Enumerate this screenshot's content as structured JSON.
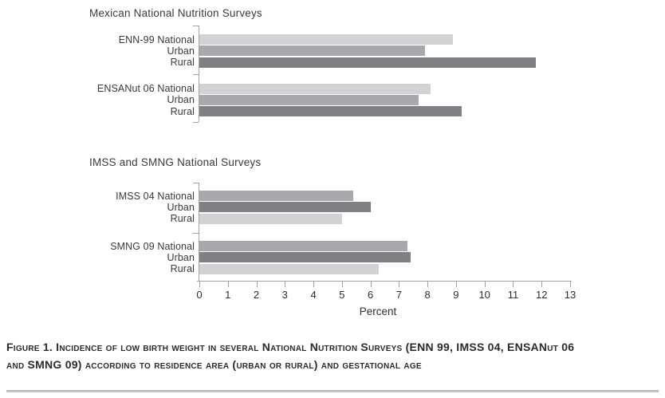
{
  "figure": {
    "caption_line1": "Figure 1. Incidence of low birth weight in several National Nutrition Surveys (ENN 99, IMSS 04, ENSANut 06",
    "caption_line2": "and SMNG 09) according to residence area (urban or rural) and gestational age"
  },
  "colors": {
    "light": "#d2d2d4",
    "medium": "#a8a8ac",
    "dark": "#7f7f84",
    "axis": "#a2a2a4",
    "text": "#39393b"
  },
  "axis": {
    "min": 0,
    "max": 13,
    "label": "Percent",
    "ticks": [
      "0",
      "1",
      "2",
      "3",
      "4",
      "5",
      "6",
      "7",
      "8",
      "9",
      "10",
      "11",
      "12",
      "13"
    ]
  },
  "chart_data": [
    {
      "type": "bar",
      "orientation": "horizontal",
      "title": "Mexican National Nutrition Surveys",
      "xlabel": "Percent",
      "xlim": [
        0,
        13
      ],
      "grid": false,
      "groups": [
        {
          "name": "ENN-99",
          "rows": [
            {
              "label": "ENN-99 National",
              "value": 8.9,
              "series": "light"
            },
            {
              "label": "Urban",
              "value": 7.9,
              "series": "medium"
            },
            {
              "label": "Rural",
              "value": 11.8,
              "series": "dark"
            }
          ]
        },
        {
          "name": "ENSANut 06",
          "rows": [
            {
              "label": "ENSANut 06 National",
              "value": 8.1,
              "series": "light"
            },
            {
              "label": "Urban",
              "value": 7.7,
              "series": "medium"
            },
            {
              "label": "Rural",
              "value": 9.2,
              "series": "dark"
            }
          ]
        }
      ]
    },
    {
      "type": "bar",
      "orientation": "horizontal",
      "title": "IMSS and SMNG National Surveys",
      "xlabel": "Percent",
      "xlim": [
        0,
        13
      ],
      "grid": false,
      "groups": [
        {
          "name": "IMSS 04",
          "rows": [
            {
              "label": "IMSS 04 National",
              "value": 5.4,
              "series": "medium"
            },
            {
              "label": "Urban",
              "value": 6.0,
              "series": "dark"
            },
            {
              "label": "Rural",
              "value": 5.0,
              "series": "light"
            }
          ]
        },
        {
          "name": "SMNG 09",
          "rows": [
            {
              "label": "SMNG 09 National",
              "value": 7.3,
              "series": "medium"
            },
            {
              "label": "Urban",
              "value": 7.4,
              "series": "dark"
            },
            {
              "label": "Rural",
              "value": 6.3,
              "series": "light"
            }
          ]
        }
      ]
    }
  ]
}
